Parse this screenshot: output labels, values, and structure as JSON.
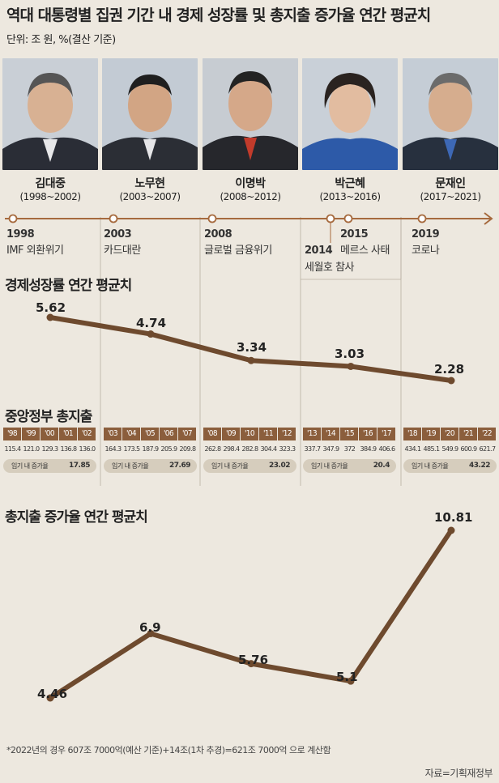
{
  "title": "역대 대통령별 집권 기간 내 경제 성장률 및 총지출 증가율 연간 평균치",
  "unit": "단위: 조 원, %(결산 기준)",
  "presidents": [
    {
      "name": "김대중",
      "term": "(1998~2002)"
    },
    {
      "name": "노무현",
      "term": "(2003~2007)"
    },
    {
      "name": "이명박",
      "term": "(2008~2012)"
    },
    {
      "name": "박근혜",
      "term": "(2013~2016)"
    },
    {
      "name": "문재인",
      "term": "(2017~2021)"
    }
  ],
  "events": [
    {
      "year": "1998",
      "name": "IMF 외환위기"
    },
    {
      "year": "2003",
      "name": "카드대란"
    },
    {
      "year": "2008",
      "name": "글로벌 금융위기"
    },
    {
      "year": "2014",
      "name": "세월호 참사"
    },
    {
      "year": "2015",
      "name": "메르스 사태"
    },
    {
      "year": "2019",
      "name": "코로나"
    }
  ],
  "sections": {
    "growth": "경제성장률 연간 평균치",
    "spending": "중앙정부 총지출",
    "increase": "총지출 증가율 연간 평균치"
  },
  "pill_label": "임기 내 증가율",
  "pills": [
    "17.85",
    "27.69",
    "23.02",
    "20.4",
    "43.22"
  ],
  "footnote": "*2022년의 경우 607조 7000억(예산 기준)+14조(1차 추경)=621조 7000억 으로 계산함",
  "source": "자료=기획재정부",
  "colors": {
    "line": "#6e4a2e",
    "bar": "#8b5e3c",
    "background": "#ede8df",
    "pill": "#d6cdbd"
  },
  "chart_data": [
    {
      "type": "line",
      "title": "경제성장률 연간 평균치",
      "categories": [
        "김대중",
        "노무현",
        "이명박",
        "박근혜",
        "문재인"
      ],
      "values": [
        5.62,
        4.74,
        3.34,
        3.03,
        2.28
      ]
    },
    {
      "type": "table",
      "title": "중앙정부 총지출",
      "years": [
        "'98",
        "'99",
        "'00",
        "'01",
        "'02",
        "'03",
        "'04",
        "'05",
        "'06",
        "'07",
        "'08",
        "'09",
        "'10",
        "'11",
        "'12",
        "'13",
        "'14",
        "'15",
        "'16",
        "'17",
        "'18",
        "'19",
        "'20",
        "'21",
        "'22"
      ],
      "values": [
        "115.4",
        "121.0",
        "129.3",
        "136.8",
        "136.0",
        "164.3",
        "173.5",
        "187.9",
        "205.9",
        "209.8",
        "262.8",
        "298.4",
        "282.8",
        "304.4",
        "323.3",
        "337.7",
        "347.9",
        "372",
        "384.9",
        "406.6",
        "434.1",
        "485.1",
        "549.9",
        "600.9",
        "621.7"
      ]
    },
    {
      "type": "line",
      "title": "총지출 증가율 연간 평균치",
      "categories": [
        "김대중",
        "노무현",
        "이명박",
        "박근혜",
        "문재인"
      ],
      "values": [
        4.46,
        6.9,
        5.76,
        5.1,
        10.81
      ]
    }
  ]
}
